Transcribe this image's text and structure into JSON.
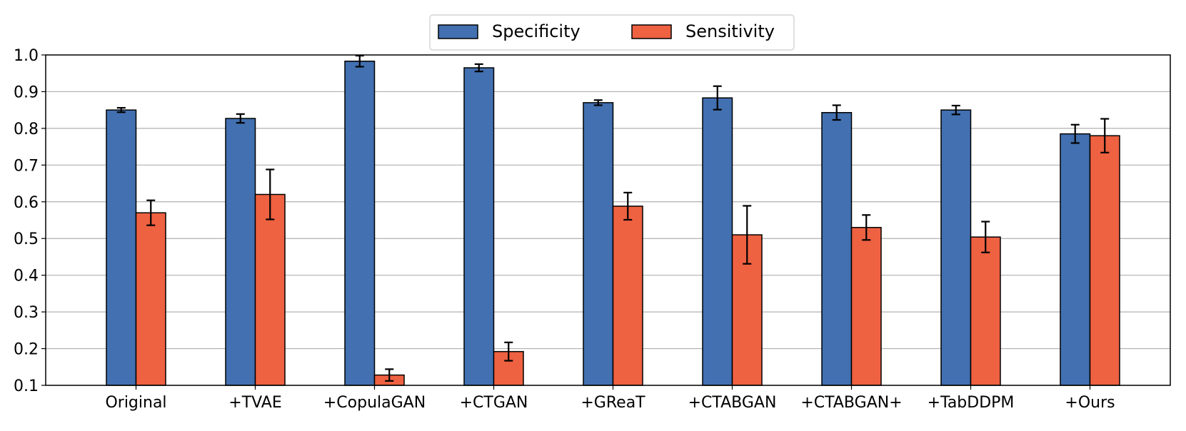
{
  "chart_data": {
    "type": "bar",
    "categories": [
      "Original",
      "+TVAE",
      "+CopulaGAN",
      "+CTGAN",
      "+GReaT",
      "+CTABGAN",
      "+CTABGAN+",
      "+TabDDPM",
      "+Ours"
    ],
    "series": [
      {
        "name": "Specificity",
        "color": "#4270b0",
        "values": [
          0.85,
          0.827,
          0.983,
          0.965,
          0.87,
          0.883,
          0.843,
          0.85,
          0.785
        ],
        "errors": [
          0.006,
          0.012,
          0.015,
          0.01,
          0.007,
          0.032,
          0.02,
          0.012,
          0.025
        ]
      },
      {
        "name": "Sensitivity",
        "color": "#ee6141",
        "values": [
          0.57,
          0.62,
          0.128,
          0.192,
          0.588,
          0.51,
          0.53,
          0.504,
          0.78
        ],
        "errors": [
          0.034,
          0.068,
          0.016,
          0.025,
          0.037,
          0.079,
          0.034,
          0.042,
          0.046
        ]
      }
    ],
    "ylim": [
      0.1,
      1.0
    ],
    "yticks": [
      "0.1",
      "0.2",
      "0.3",
      "0.4",
      "0.5",
      "0.6",
      "0.7",
      "0.8",
      "0.9",
      "1.0"
    ],
    "grid": "horizontal",
    "legend_position": "top-center",
    "title": "",
    "xlabel": "",
    "ylabel": ""
  }
}
